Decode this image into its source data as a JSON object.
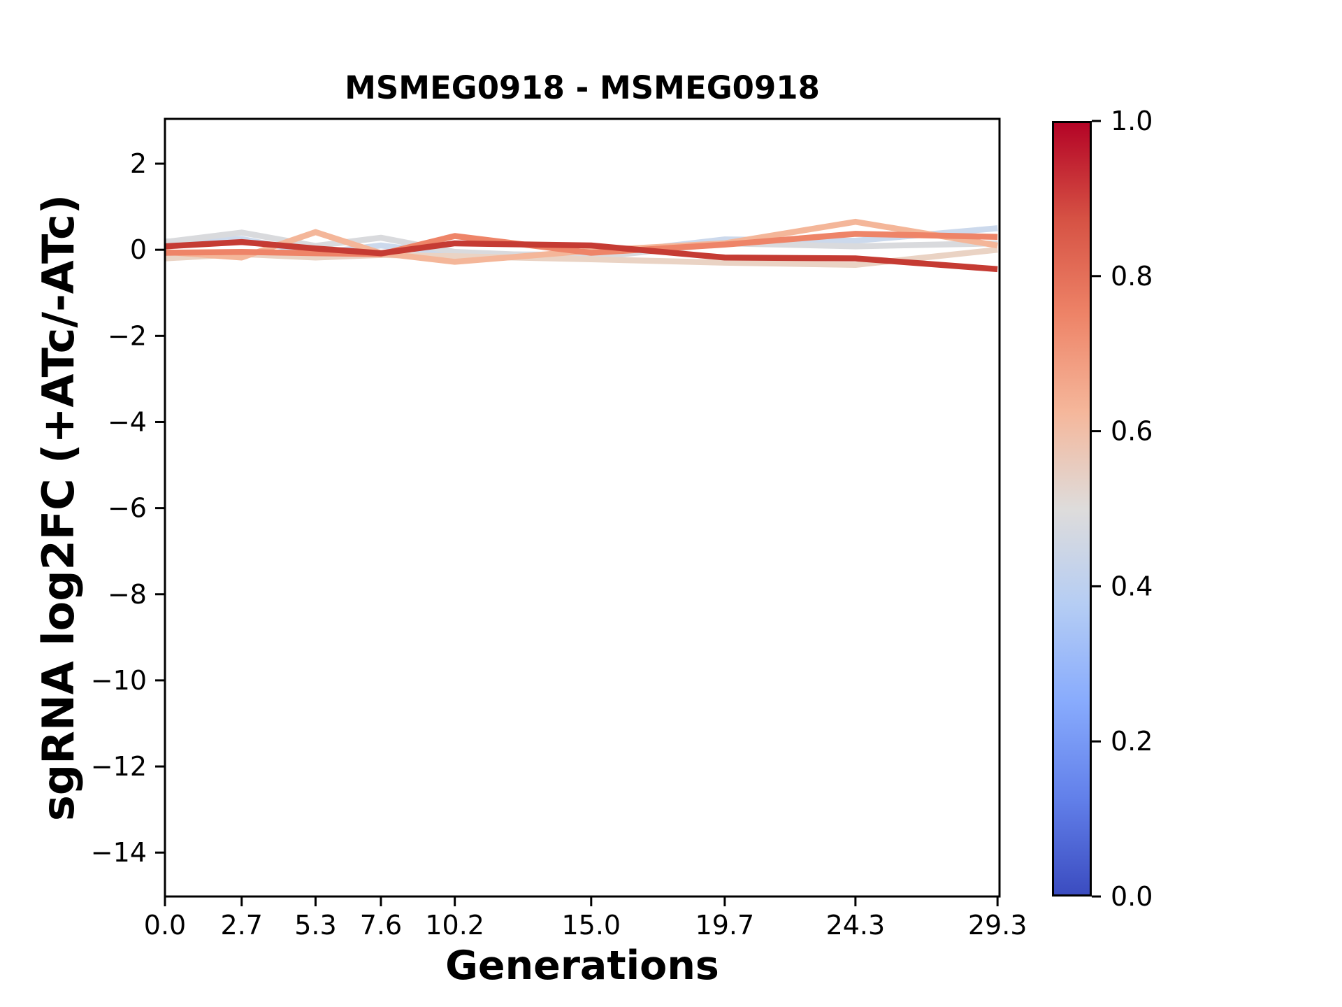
{
  "chart_data": {
    "type": "line",
    "title": "MSMEG0918 - MSMEG0918",
    "xlabel": "Generations",
    "ylabel": "sgRNA log2FC (+ATc/-ATc)",
    "x": [
      0.0,
      2.7,
      5.3,
      7.6,
      10.2,
      15.0,
      19.7,
      24.3,
      29.3
    ],
    "x_tick_labels": [
      "0.0",
      "2.7",
      "5.3",
      "7.6",
      "10.2",
      "15.0",
      "19.7",
      "24.3",
      "29.3"
    ],
    "y_ticks": [
      2,
      0,
      -2,
      -4,
      -6,
      -8,
      -10,
      -12,
      -14
    ],
    "y_tick_labels": [
      "2",
      "0",
      "−2",
      "−4",
      "−6",
      "−8",
      "−10",
      "−12",
      "−14"
    ],
    "xlim": [
      0,
      29.37
    ],
    "ylim": [
      -15.02,
      3.04
    ],
    "grid": false,
    "series": [
      {
        "colormap_value": 0.42,
        "color": "#ccd9ec",
        "values": [
          0.19,
          0.25,
          -0.08,
          0.1,
          -0.1,
          -0.12,
          0.24,
          0.21,
          0.5
        ]
      },
      {
        "colormap_value": 0.5,
        "color": "#d9dadd",
        "values": [
          0.18,
          0.4,
          0.09,
          0.28,
          -0.05,
          -0.18,
          0.15,
          0.08,
          0.15
        ]
      },
      {
        "colormap_value": 0.57,
        "color": "#ead3c4",
        "values": [
          -0.2,
          -0.1,
          -0.18,
          -0.12,
          -0.15,
          -0.22,
          -0.3,
          -0.35,
          0.0
        ]
      },
      {
        "colormap_value": 0.65,
        "color": "#f4b699",
        "values": [
          -0.05,
          -0.18,
          0.41,
          -0.08,
          -0.28,
          -0.02,
          0.15,
          0.65,
          0.1
        ]
      },
      {
        "colormap_value": 0.8,
        "color": "#ee8468",
        "values": [
          -0.07,
          -0.05,
          -0.08,
          -0.1,
          0.32,
          -0.07,
          0.12,
          0.37,
          0.3
        ]
      },
      {
        "colormap_value": 0.95,
        "color": "#c53b33",
        "values": [
          0.08,
          0.18,
          0.03,
          -0.08,
          0.15,
          0.1,
          -0.18,
          -0.2,
          -0.45
        ]
      }
    ],
    "colorbar": {
      "cmap": "coolwarm",
      "min": 0.0,
      "max": 1.0,
      "tick_values": [
        1.0,
        0.8,
        0.6,
        0.4,
        0.2,
        0.0
      ],
      "tick_labels": [
        "1.0",
        "0.8",
        "0.6",
        "0.4",
        "0.2",
        "0.0"
      ],
      "cmap_stops": [
        {
          "t": 1.0,
          "color": "#b40426"
        },
        {
          "t": 0.875,
          "color": "#d65244"
        },
        {
          "t": 0.75,
          "color": "#ee8468"
        },
        {
          "t": 0.625,
          "color": "#f5b79b"
        },
        {
          "t": 0.5,
          "color": "#dedcdb"
        },
        {
          "t": 0.375,
          "color": "#b5cdf4"
        },
        {
          "t": 0.25,
          "color": "#88abfd"
        },
        {
          "t": 0.125,
          "color": "#6280ea"
        },
        {
          "t": 0.0,
          "color": "#3b4cc0"
        }
      ]
    }
  }
}
